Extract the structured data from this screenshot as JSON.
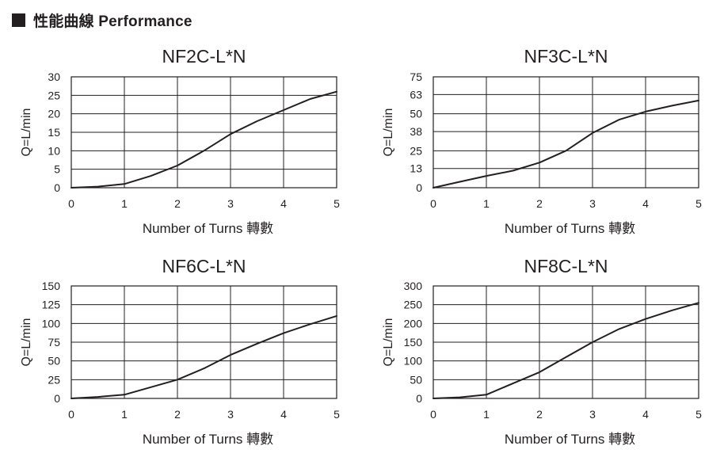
{
  "header": {
    "title": "性能曲線  Performance"
  },
  "chart_data": [
    {
      "type": "line",
      "title": "NF2C-L*N",
      "xlabel": "Number of Turns 轉數",
      "ylabel": "Q=L/min",
      "xlim": [
        0,
        5
      ],
      "ylim": [
        0,
        30
      ],
      "xticks": [
        0,
        1,
        2,
        3,
        4,
        5
      ],
      "yticks": [
        0,
        5,
        10,
        15,
        20,
        25,
        30
      ],
      "grid": true,
      "series": [
        {
          "x": [
            0,
            0.5,
            1,
            1.5,
            2,
            2.5,
            3,
            3.5,
            4,
            4.5,
            5
          ],
          "y": [
            0,
            0.3,
            1,
            3.2,
            6,
            10,
            14.5,
            18,
            21,
            24,
            26
          ]
        }
      ]
    },
    {
      "type": "line",
      "title": "NF3C-L*N",
      "xlabel": "Number of Turns 轉數",
      "ylabel": "Q=L/min",
      "xlim": [
        0,
        5
      ],
      "ylim": [
        0,
        75
      ],
      "xticks": [
        0,
        1,
        2,
        3,
        4,
        5
      ],
      "yticks": [
        0,
        13,
        25,
        38,
        50,
        63,
        75
      ],
      "grid": true,
      "series": [
        {
          "x": [
            0,
            0.5,
            1,
            1.5,
            2,
            2.5,
            3,
            3.5,
            4,
            4.5,
            5
          ],
          "y": [
            0,
            4,
            8,
            11.5,
            17,
            25,
            37,
            46,
            51.5,
            55.5,
            59
          ]
        }
      ]
    },
    {
      "type": "line",
      "title": "NF6C-L*N",
      "xlabel": "Number of Turns 轉數",
      "ylabel": "Q=L/min",
      "xlim": [
        0,
        5
      ],
      "ylim": [
        0,
        150
      ],
      "xticks": [
        0,
        1,
        2,
        3,
        4,
        5
      ],
      "yticks": [
        0,
        25,
        50,
        75,
        100,
        125,
        150
      ],
      "grid": true,
      "series": [
        {
          "x": [
            0,
            0.5,
            1,
            1.5,
            2,
            2.5,
            3,
            3.5,
            4,
            4.5,
            5
          ],
          "y": [
            0,
            2,
            5,
            15,
            25,
            40,
            58,
            73,
            87,
            99,
            110
          ]
        }
      ]
    },
    {
      "type": "line",
      "title": "NF8C-L*N",
      "xlabel": "Number of Turns 轉數",
      "ylabel": "Q=L/min",
      "xlim": [
        0,
        5
      ],
      "ylim": [
        0,
        300
      ],
      "xticks": [
        0,
        1,
        2,
        3,
        4,
        5
      ],
      "yticks": [
        0,
        50,
        100,
        150,
        200,
        250,
        300
      ],
      "grid": true,
      "series": [
        {
          "x": [
            0,
            0.5,
            1,
            1.5,
            2,
            2.5,
            3,
            3.5,
            4,
            4.5,
            5
          ],
          "y": [
            0,
            3,
            10,
            40,
            70,
            110,
            150,
            185,
            212,
            235,
            255
          ]
        }
      ]
    }
  ]
}
